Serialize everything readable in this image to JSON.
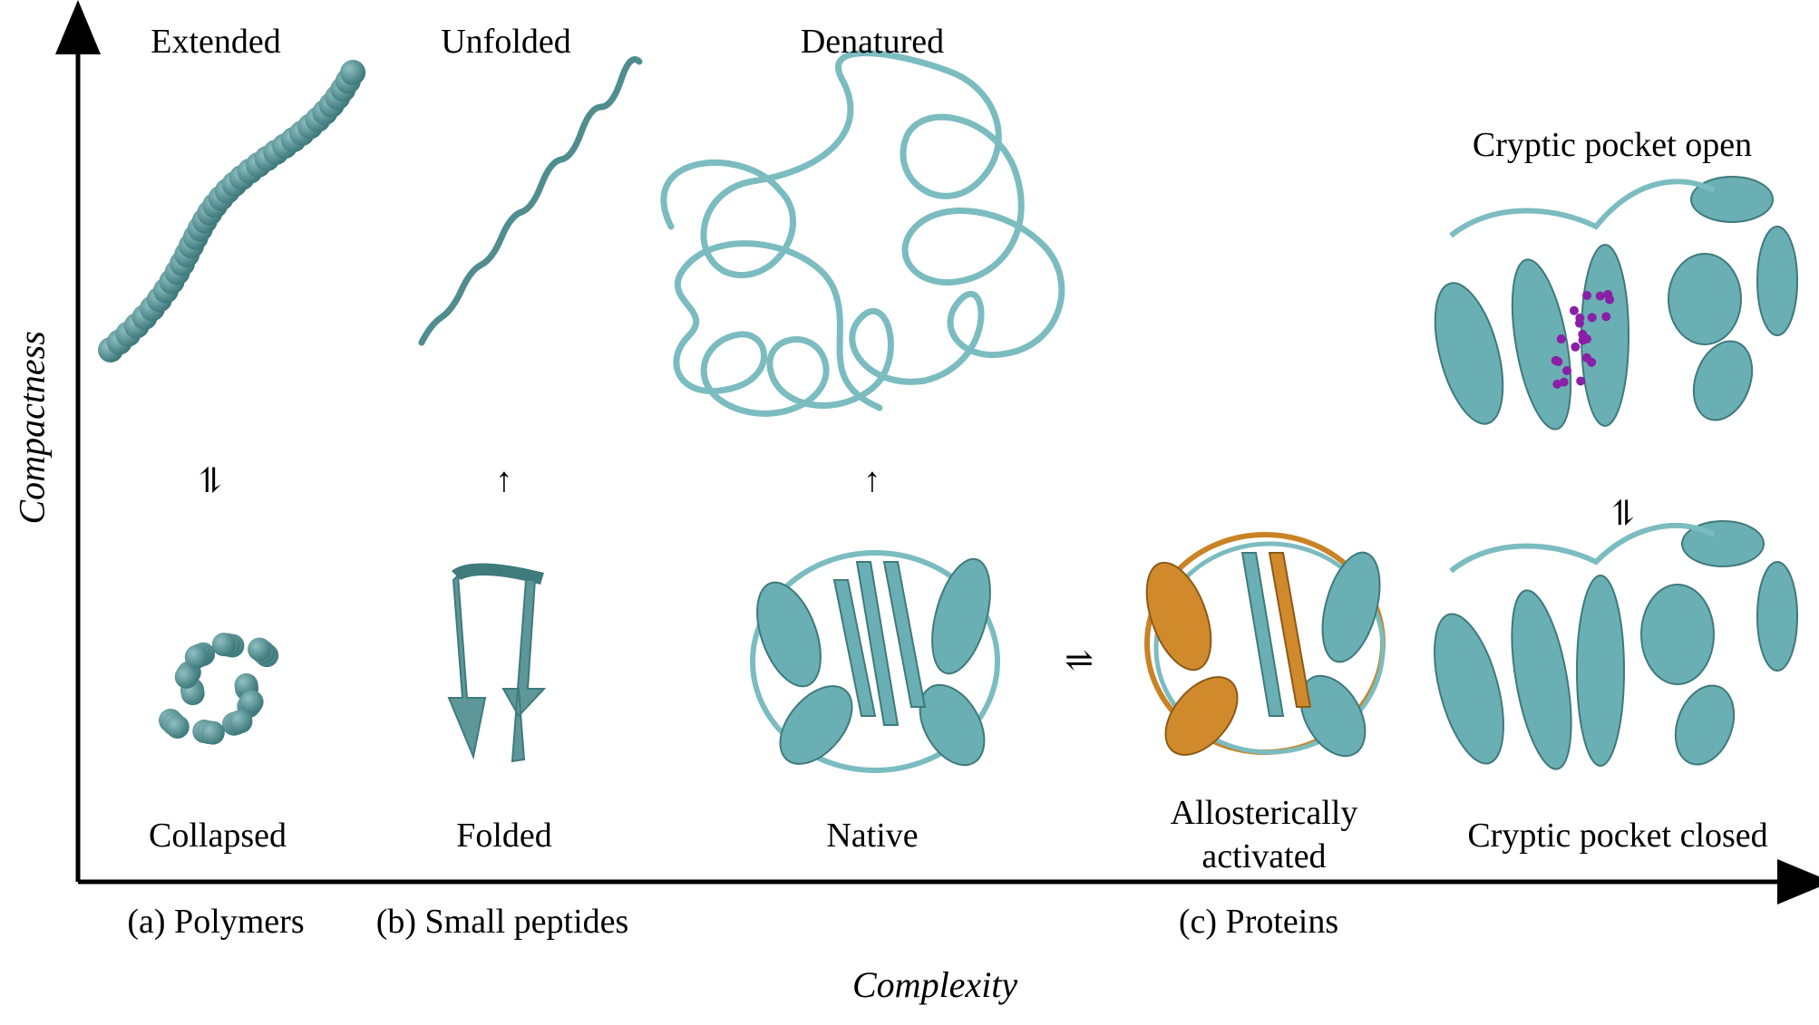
{
  "axes": {
    "x_title": "Complexity",
    "y_title": "Compactness"
  },
  "categories": {
    "polymers": "(a) Polymers",
    "peptides": "(b) Small peptides",
    "proteins": "(c) Proteins"
  },
  "states": {
    "extended": "Extended",
    "unfolded": "Unfolded",
    "denatured": "Denatured",
    "cryptic_open": "Cryptic pocket open",
    "collapsed": "Collapsed",
    "folded": "Folded",
    "native": "Native",
    "allosteric_line1": "Allosterically",
    "allosteric_line2": "activated",
    "cryptic_closed": "Cryptic pocket closed"
  },
  "transitions": {
    "equilibrium": "⇌",
    "equilibrium_vertical": "⥮",
    "up": "↑"
  },
  "colors": {
    "teal_dark": "#4f8d8f",
    "teal_light": "#7bbcc0",
    "orange": "#c98325",
    "purple": "#8a1fa8"
  }
}
